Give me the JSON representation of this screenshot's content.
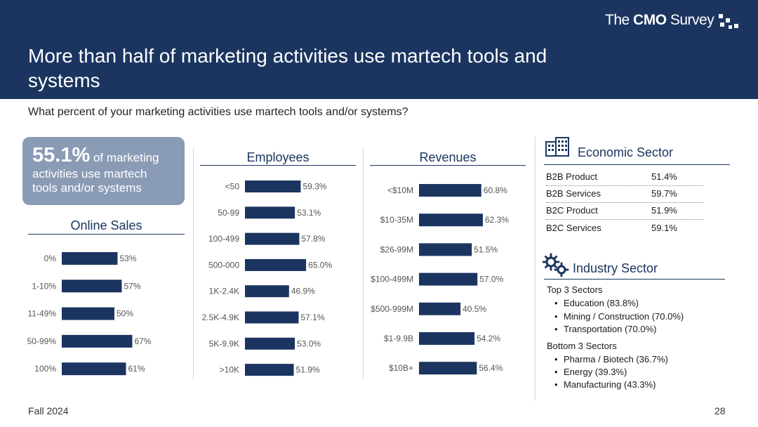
{
  "header": {
    "title": "More than half of marketing activities use martech tools and systems",
    "brand_prefix": "The ",
    "brand_bold": "CMO",
    "brand_suffix": " Survey"
  },
  "question": "What percent of your marketing activities use martech tools and/or systems?",
  "highlight": {
    "value": "55.1%",
    "text": " of marketing activities use martech tools and/or systems"
  },
  "colors": {
    "navy": "#1b3560",
    "box": "#8a9bb6"
  },
  "chart_data": [
    {
      "type": "bar",
      "orientation": "horizontal",
      "title": "Online Sales",
      "categories": [
        "0%",
        "1-10%",
        "11-49%",
        "50-99%",
        "100%"
      ],
      "values": [
        53,
        57,
        50,
        67,
        61
      ],
      "labels": [
        "53%",
        "57%",
        "50%",
        "67%",
        "61%"
      ],
      "xlim": [
        0,
        100
      ]
    },
    {
      "type": "bar",
      "orientation": "horizontal",
      "title": "Employees",
      "categories": [
        "<50",
        "50-99",
        "100-499",
        "500-000",
        "1K-2.4K",
        "2.5K-4.9K",
        "5K-9.9K",
        ">10K"
      ],
      "values": [
        59.3,
        53.1,
        57.8,
        65.0,
        46.9,
        57.1,
        53.0,
        51.9
      ],
      "labels": [
        "59.3%",
        "53.1%",
        "57.8%",
        "65.0%",
        "46.9%",
        "57.1%",
        "53.0%",
        "51.9%"
      ],
      "xlim": [
        0,
        100
      ]
    },
    {
      "type": "bar",
      "orientation": "horizontal",
      "title": "Revenues",
      "categories": [
        "<$10M",
        "$10-35M",
        "$26-99M",
        "$100-499M",
        "$500-999M",
        "$1-9.9B",
        "$10B+"
      ],
      "values": [
        60.8,
        62.3,
        51.5,
        57.0,
        40.5,
        54.2,
        56.4
      ],
      "labels": [
        "60.8%",
        "62.3%",
        "51.5%",
        "57.0%",
        "40.5%",
        "54.2%",
        "56.4%"
      ],
      "xlim": [
        0,
        100
      ]
    },
    {
      "type": "table",
      "title": "Economic Sector",
      "rows": [
        {
          "label": "B2B Product",
          "value": "51.4%"
        },
        {
          "label": "B2B Services",
          "value": "59.7%"
        },
        {
          "label": "B2C Product",
          "value": "51.9%"
        },
        {
          "label": "B2C Services",
          "value": "59.1%"
        }
      ]
    }
  ],
  "industry": {
    "title": "Industry Sector",
    "top_label": "Top 3 Sectors",
    "top": [
      "Education (83.8%)",
      "Mining / Construction (70.0%)",
      "Transportation (70.0%)"
    ],
    "bottom_label": "Bottom 3 Sectors",
    "bottom": [
      "Pharma / Biotech (36.7%)",
      "Energy (39.3%)",
      "Manufacturing (43.3%)"
    ]
  },
  "footer": {
    "left": "Fall 2024",
    "page": "28"
  }
}
